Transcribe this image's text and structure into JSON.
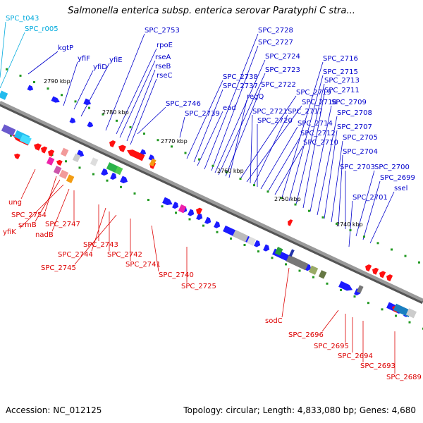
{
  "title": "Salmonella enterica subsp. enterica serovar Paratyphi C stra...",
  "footer": {
    "accession": "Accession: NC_012125",
    "topology": "Topology: circular; Length: 4,833,080 bp; Genes: 4,680"
  },
  "colors": {
    "forward_label": "#0000cc",
    "reverse_label": "#dd0000",
    "rna_label": "#00aadd",
    "forward_gene": "#1b1bff",
    "reverse_gene": "#ff1010",
    "backbone": "#888888"
  },
  "scale_marks": [
    "2790 kbp",
    "2780 kbp",
    "2770 kbp",
    "2760 kbp",
    "2750 kbp",
    "2740 kbp"
  ],
  "labels_rna": [
    "SPC_t043",
    "SPC_r005"
  ],
  "labels_forward": [
    "kgtP",
    "yfiF",
    "yfiD",
    "yfiE",
    "SPC_2753",
    "rpoE",
    "rseA",
    "rseB",
    "rseC",
    "SPC_2746",
    "SPC_2739",
    "SPC_2738",
    "SPC_2737",
    "ead",
    "SPC_2728",
    "SPC_2727",
    "SPC_2724",
    "SPC_2723",
    "SPC_2722",
    "regQ",
    "SPC_2719",
    "SPC_2718",
    "SPC_2721",
    "SPC_2717",
    "SPC_2720",
    "SPC_2714",
    "SPC_2712",
    "SPC_2710",
    "SPC_2716",
    "SPC_2715",
    "SPC_2713",
    "SPC_2711",
    "SPC_2709",
    "SPC_2708",
    "SPC_2707",
    "SPC_2705",
    "SPC_2704",
    "SPC_2703",
    "SPC_2700",
    "SPC_2699",
    "ssel",
    "SPC_2701"
  ],
  "labels_reverse": [
    "ung",
    "SPC_2754",
    "srmB",
    "yfiK",
    "nadB",
    "SPC_2747",
    "SPC_2743",
    "SPC_2744",
    "SPC_2742",
    "SPC_2745",
    "SPC_2741",
    "SPC_2740",
    "SPC_2725",
    "sodC",
    "SPC_2696",
    "SPC_2695",
    "SPC_2694",
    "SPC_2693",
    "SPC_2689"
  ]
}
